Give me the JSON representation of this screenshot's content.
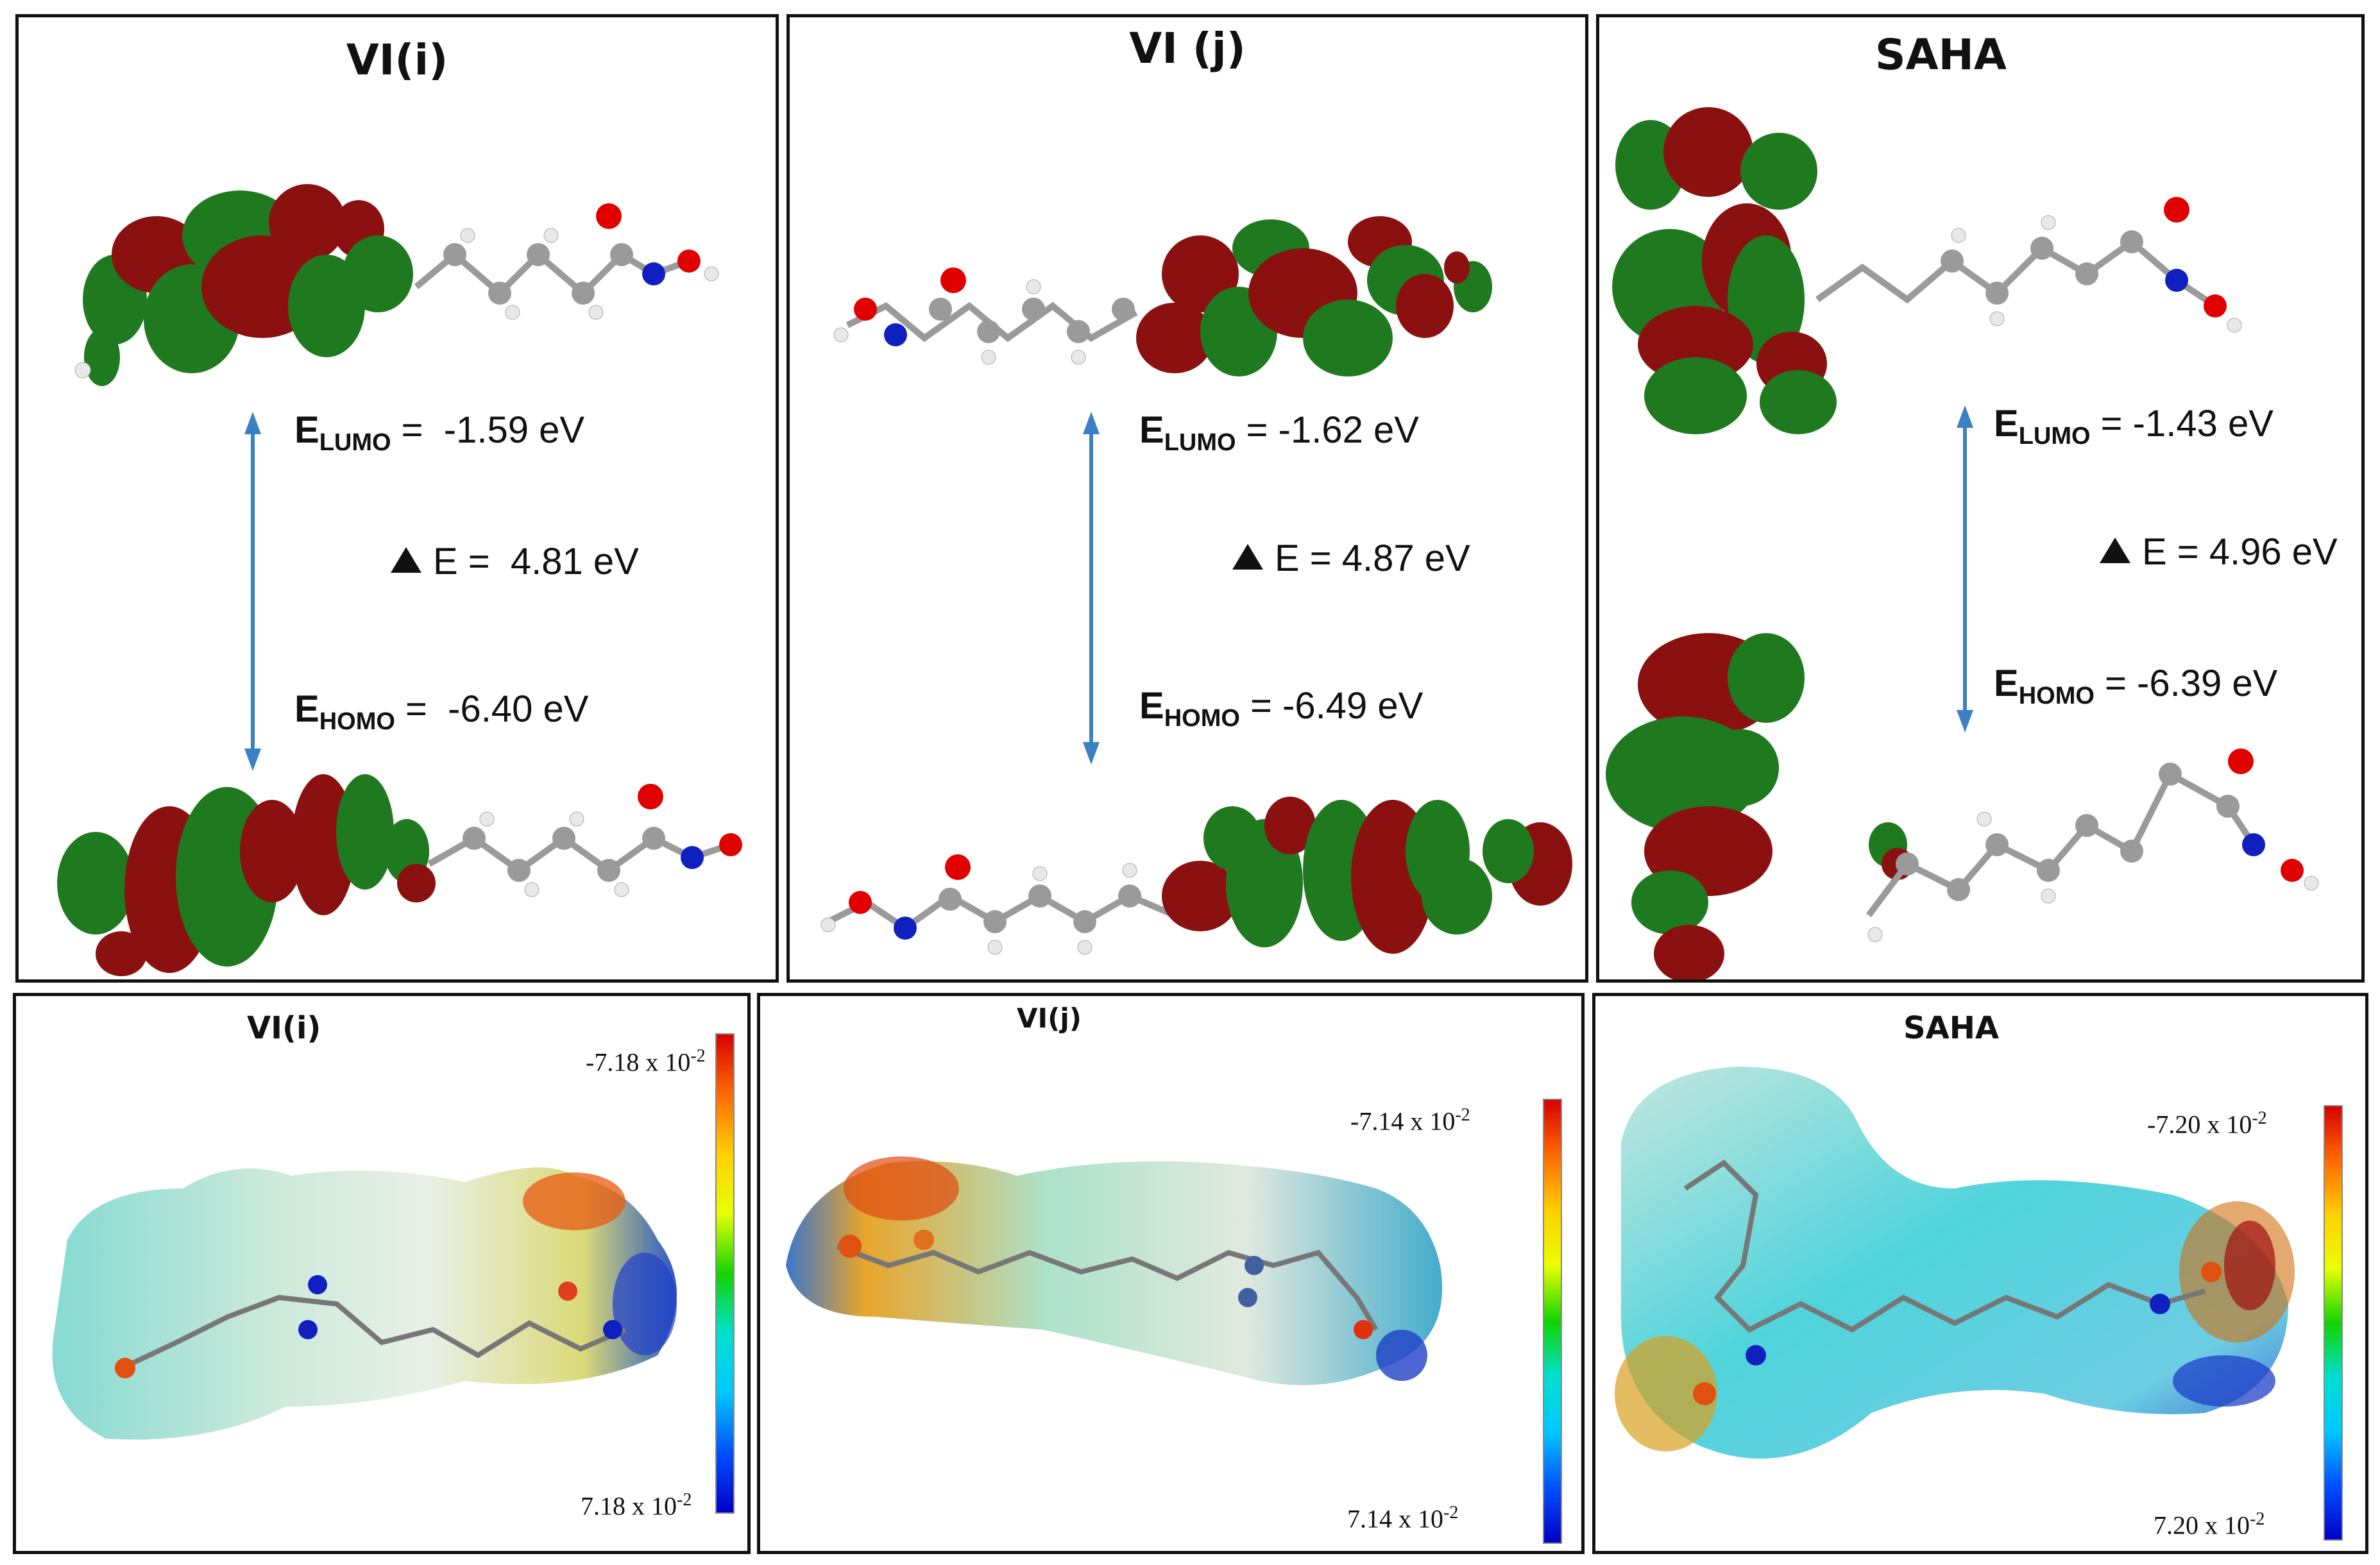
{
  "frontier_orbitals": [
    {
      "title": "VI(i)",
      "lumo": "-1.59 eV",
      "gap": "4.81 eV",
      "homo": "-6.40 eV"
    },
    {
      "title": "VI (j)",
      "lumo": "-1.62 eV",
      "gap": "4.87 eV",
      "homo": "-6.49 eV"
    },
    {
      "title": "SAHA",
      "lumo": "-1.43 eV",
      "gap": "4.96 eV",
      "homo": "-6.39 eV"
    }
  ],
  "energy_labels": {
    "e": "E",
    "lumo_sub": "LUMO",
    "homo_sub": "HOMO",
    "delta_e": "E ="
  },
  "mep_maps": [
    {
      "title": "VI(i)",
      "max_mantissa": "-7.18 x 10",
      "min_mantissa": "7.18 x 10",
      "exponent": "-2"
    },
    {
      "title": "VI(j)",
      "max_mantissa": "-7.14 x 10",
      "min_mantissa": "7.14 x 10",
      "exponent": "-2"
    },
    {
      "title": "SAHA",
      "max_mantissa": "-7.20 x 10",
      "min_mantissa": "7.20 x 10",
      "exponent": "-2"
    }
  ],
  "colors": {
    "orbital_positive": "#8b1010",
    "orbital_negative": "#1f7a1f",
    "oxygen": "#e00000",
    "nitrogen": "#1020c0",
    "carbon": "#9a9a9a",
    "hydrogen": "#f0f0f0",
    "arrow": "#3b7fc4"
  }
}
